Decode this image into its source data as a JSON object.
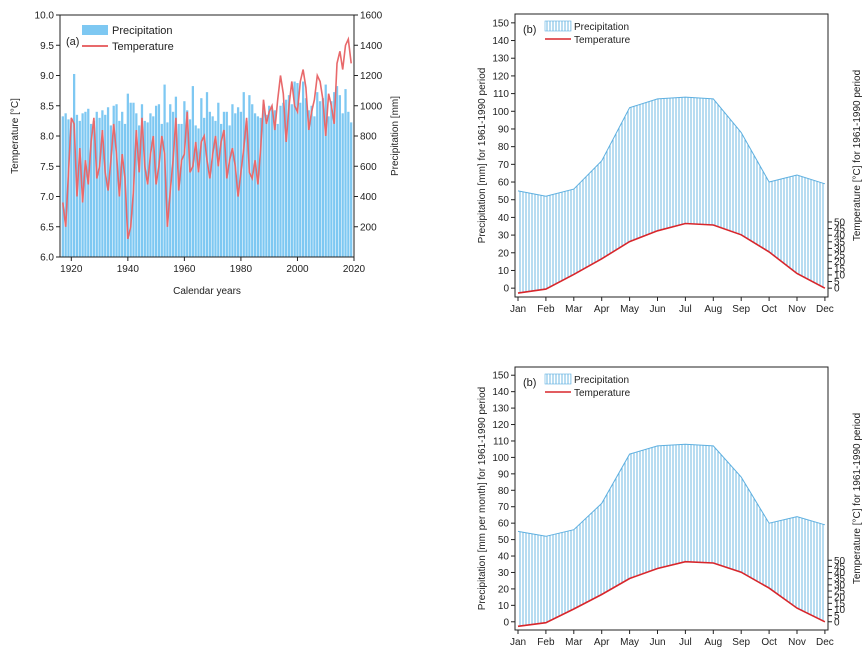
{
  "colors": {
    "bar_fill": "#7ec8f2",
    "hatch_line": "#5fb0e0",
    "temp_a": "#e8696b",
    "temp_b": "#d8262b",
    "axis": "#222222"
  },
  "chart_data": [
    {
      "type": "bar",
      "panel_label": "(a)",
      "xlabel": "Calendar years",
      "ylabel_left": "Temperature [°C]",
      "ylabel_right": "Precipitation [mm]",
      "xlim": [
        1916,
        2020
      ],
      "ylim_left": [
        6.0,
        10.0
      ],
      "ylim_right": [
        0,
        1600
      ],
      "x_ticks": [
        1920,
        1940,
        1960,
        1980,
        2000,
        2020
      ],
      "yleft_ticks": [
        "6.0",
        "6.5",
        "7.0",
        "7.5",
        "8.0",
        "8.5",
        "9.0",
        "9.5",
        "10.0"
      ],
      "yright_ticks": [
        "200",
        "400",
        "600",
        "800",
        "1000",
        "1200",
        "1400",
        "1600"
      ],
      "legend": [
        "Precipitation",
        "Temperature"
      ],
      "legend_position": "top-left",
      "grid": false,
      "years": [
        1917,
        1918,
        1919,
        1920,
        1921,
        1922,
        1923,
        1924,
        1925,
        1926,
        1927,
        1928,
        1929,
        1930,
        1931,
        1932,
        1933,
        1934,
        1935,
        1936,
        1937,
        1938,
        1939,
        1940,
        1941,
        1942,
        1943,
        1944,
        1945,
        1946,
        1947,
        1948,
        1949,
        1950,
        1951,
        1952,
        1953,
        1954,
        1955,
        1956,
        1957,
        1958,
        1959,
        1960,
        1961,
        1962,
        1963,
        1964,
        1965,
        1966,
        1967,
        1968,
        1969,
        1970,
        1971,
        1972,
        1973,
        1974,
        1975,
        1976,
        1977,
        1978,
        1979,
        1980,
        1981,
        1982,
        1983,
        1984,
        1985,
        1986,
        1987,
        1988,
        1989,
        1990,
        1991,
        1992,
        1993,
        1994,
        1995,
        1996,
        1997,
        1998,
        1999,
        2000,
        2001,
        2002,
        2003,
        2004,
        2005,
        2006,
        2007,
        2008,
        2009,
        2010,
        2011,
        2012,
        2013,
        2014,
        2015,
        2016,
        2017,
        2018,
        2019
      ],
      "precipitation": [
        930,
        950,
        910,
        890,
        1210,
        940,
        900,
        950,
        960,
        980,
        880,
        900,
        960,
        920,
        970,
        940,
        990,
        870,
        1000,
        1010,
        900,
        960,
        880,
        1080,
        1020,
        1020,
        950,
        870,
        1010,
        900,
        890,
        950,
        930,
        1000,
        1010,
        880,
        1140,
        890,
        1010,
        960,
        1060,
        880,
        880,
        1030,
        970,
        910,
        1130,
        870,
        850,
        1050,
        920,
        1090,
        960,
        930,
        900,
        1020,
        880,
        960,
        960,
        870,
        1010,
        950,
        990,
        960,
        1090,
        900,
        1070,
        1010,
        950,
        930,
        920,
        1010,
        940,
        1000,
        980,
        970,
        880,
        1000,
        1020,
        1040,
        1070,
        1010,
        1160,
        1150,
        1020,
        1160,
        1050,
        970,
        1000,
        930,
        1090,
        1030,
        1050,
        1140,
        930,
        1030,
        1090,
        1130,
        1070,
        950,
        1110,
        960,
        890
      ],
      "temperature": [
        6.9,
        6.5,
        7.4,
        8.3,
        8.2,
        7.0,
        7.8,
        6.9,
        7.6,
        7.2,
        7.9,
        8.3,
        7.3,
        7.5,
        8.1,
        7.4,
        7.1,
        7.6,
        8.2,
        7.7,
        7.0,
        7.7,
        7.3,
        6.3,
        6.5,
        7.1,
        8.1,
        7.4,
        8.3,
        7.5,
        7.2,
        7.7,
        8.0,
        7.2,
        7.5,
        8.0,
        7.7,
        6.5,
        7.1,
        7.6,
        8.3,
        7.1,
        7.6,
        7.7,
        8.4,
        7.4,
        7.5,
        7.9,
        7.4,
        7.9,
        8.0,
        7.6,
        7.3,
        7.7,
        8.0,
        7.5,
        7.9,
        8.1,
        7.3,
        7.6,
        7.8,
        7.5,
        7.0,
        7.4,
        7.8,
        8.3,
        7.4,
        7.3,
        7.6,
        7.2,
        7.8,
        8.6,
        8.2,
        8.4,
        8.5,
        8.1,
        8.6,
        9.0,
        8.7,
        7.9,
        8.5,
        8.9,
        8.5,
        8.4,
        8.9,
        9.1,
        8.8,
        8.1,
        8.4,
        8.6,
        9.0,
        8.9,
        8.6,
        8.0,
        8.7,
        8.5,
        8.2,
        9.2,
        9.4,
        9.1,
        9.5,
        9.6,
        9.2
      ]
    },
    {
      "type": "bar",
      "panel_label": "(b)",
      "ylabel_left": "Precipitation [mm] for 1961-1990 period",
      "ylabel_right": "Temperature [°C] for 1961-1990 period",
      "categories": [
        "Jan",
        "Feb",
        "Mar",
        "Apr",
        "May",
        "Jun",
        "Jul",
        "Aug",
        "Sep",
        "Oct",
        "Nov",
        "Dec"
      ],
      "ylim_left": [
        -5,
        155
      ],
      "yleft_ticks": [
        0,
        10,
        20,
        30,
        40,
        50,
        60,
        70,
        80,
        90,
        100,
        110,
        120,
        130,
        140,
        150
      ],
      "yright_ticks": [
        0,
        5,
        10,
        15,
        20,
        25,
        30,
        35,
        40,
        45,
        50
      ],
      "legend": [
        "Precipitation",
        "Temperature"
      ],
      "legend_position": "top-left",
      "grid": false,
      "precipitation": [
        55,
        52,
        56,
        72,
        102,
        107,
        108,
        107,
        88,
        60,
        64,
        59
      ],
      "temperature": [
        -1.0,
        -0.2,
        2.8,
        6.0,
        9.5,
        11.7,
        13.2,
        12.9,
        10.9,
        7.4,
        3.0,
        0.0
      ]
    },
    {
      "type": "bar",
      "panel_label": "(b)",
      "ylabel_left": "Precipitation [mm per month] for 1961-1990 period",
      "ylabel_right": "Temperature [°C] for 1961-1990 period",
      "categories": [
        "Jan",
        "Feb",
        "Mar",
        "Apr",
        "May",
        "Jun",
        "Jul",
        "Aug",
        "Sep",
        "Oct",
        "Nov",
        "Dec"
      ],
      "ylim_left": [
        -5,
        155
      ],
      "yleft_ticks": [
        0,
        10,
        20,
        30,
        40,
        50,
        60,
        70,
        80,
        90,
        100,
        110,
        120,
        130,
        140,
        150
      ],
      "yright_ticks": [
        0,
        5,
        10,
        15,
        20,
        25,
        30,
        35,
        40,
        45,
        50
      ],
      "legend": [
        "Precipitation",
        "Temperature"
      ],
      "legend_position": "top-left",
      "grid": false,
      "precipitation": [
        55,
        52,
        56,
        72,
        102,
        107,
        108,
        107,
        88,
        60,
        64,
        59
      ],
      "temperature": [
        -1.0,
        -0.2,
        2.8,
        6.0,
        9.5,
        11.7,
        13.2,
        12.9,
        10.9,
        7.4,
        3.0,
        0.0
      ]
    }
  ]
}
